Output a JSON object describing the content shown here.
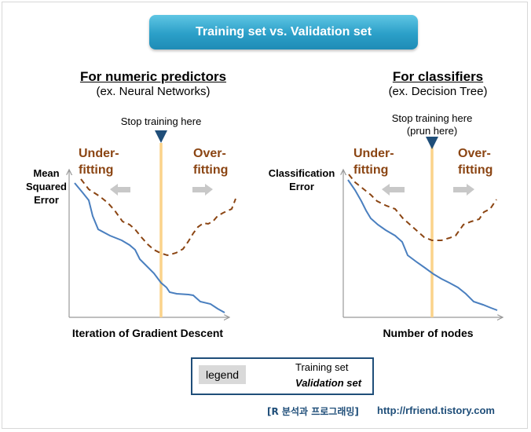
{
  "banner": {
    "title": "Training set vs. Validation set"
  },
  "left_panel": {
    "title": "For numeric predictors",
    "subtitle": "(ex. Neural Networks)",
    "stop_text": "Stop training here",
    "under_label": "Under-\nfitting",
    "over_label": "Over-\nfitting",
    "ylabel": "Mean\nSquared\nError",
    "xlabel": "Iteration of Gradient Descent"
  },
  "right_panel": {
    "title": "For classifiers",
    "subtitle": "(ex. Decision Tree)",
    "stop_text": "Stop training here\n(prun here)",
    "under_label": "Under-\nfitting",
    "over_label": "Over-\nfitting",
    "ylabel": "Classification\nError",
    "xlabel": "Number of nodes"
  },
  "legend": {
    "title": "legend",
    "training_label": "Training set",
    "validation_label": "Validation set"
  },
  "footer": {
    "blog": "[R 분석과 프로그래밍]",
    "url": "http://rfriend.tistory.com"
  },
  "colors": {
    "training": "#4a7fbf",
    "validation": "#8b4513",
    "stop_line": "#fbd38a",
    "stop_marker": "#1f4e79",
    "arrow": "#c8c8c8",
    "banner": "#2b9fc8"
  }
}
